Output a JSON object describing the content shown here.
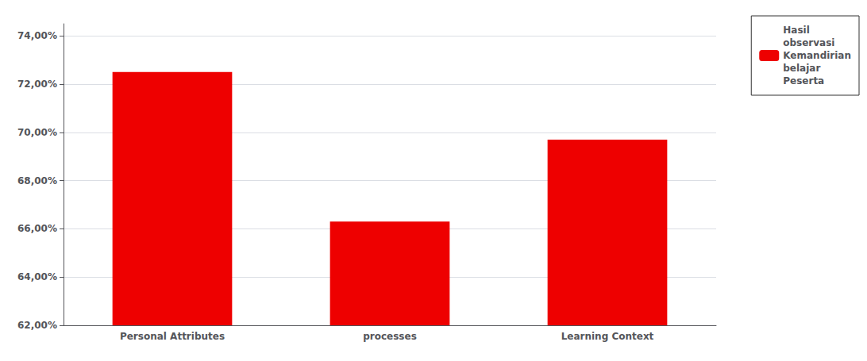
{
  "chart_data": {
    "type": "bar",
    "categories": [
      "Personal Attributes",
      "processes",
      "Learning Context"
    ],
    "series": [
      {
        "name": "Hasil\nobservasi\nKemandirian\nbelajar\nPeserta",
        "color": "#EE0000",
        "values": [
          72.5,
          66.3,
          69.7
        ]
      }
    ],
    "ylim": [
      62.0,
      74.5
    ],
    "yticks": [
      {
        "value": 62.0,
        "label": "62,00%"
      },
      {
        "value": 64.0,
        "label": "64,00%"
      },
      {
        "value": 66.0,
        "label": "66,00%"
      },
      {
        "value": 68.0,
        "label": "68,00%"
      },
      {
        "value": 70.0,
        "label": "70,00%"
      },
      {
        "value": 72.0,
        "label": "72,00%"
      },
      {
        "value": 74.0,
        "label": "74,00%"
      }
    ],
    "grid": true,
    "legend": "upper right"
  }
}
